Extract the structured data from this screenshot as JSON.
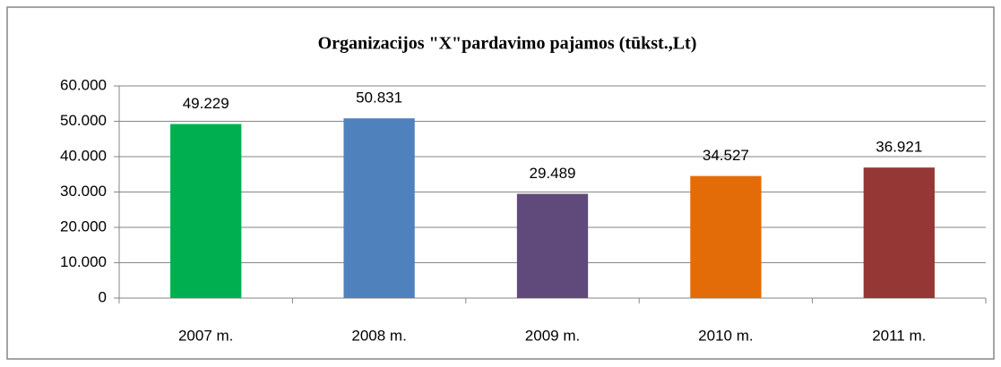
{
  "chart_data": {
    "type": "bar",
    "title": "Organizacijos \"X\"pardavimo pajamos (tūkst.,Lt)",
    "categories": [
      "2007 m.",
      "2008 m.",
      "2009 m.",
      "2010 m.",
      "2011 m."
    ],
    "values": [
      49229,
      50831,
      29489,
      34527,
      36921
    ],
    "value_labels": [
      "49.229",
      "50.831",
      "29.489",
      "34.527",
      "36.921"
    ],
    "colors": [
      "#00b050",
      "#4f81bd",
      "#604a7b",
      "#e36c09",
      "#953735"
    ],
    "ylim": [
      0,
      60000
    ],
    "yticks": [
      0,
      {
        "value": 10000,
        "label": "10.000"
      },
      {
        "value": 20000,
        "label": "20.000"
      },
      {
        "value": 30000,
        "label": "30.000"
      },
      {
        "value": 40000,
        "label": "40.000"
      },
      {
        "value": 50000,
        "label": "50.000"
      },
      {
        "value": 60000,
        "label": "60.000"
      }
    ],
    "grid": true
  }
}
